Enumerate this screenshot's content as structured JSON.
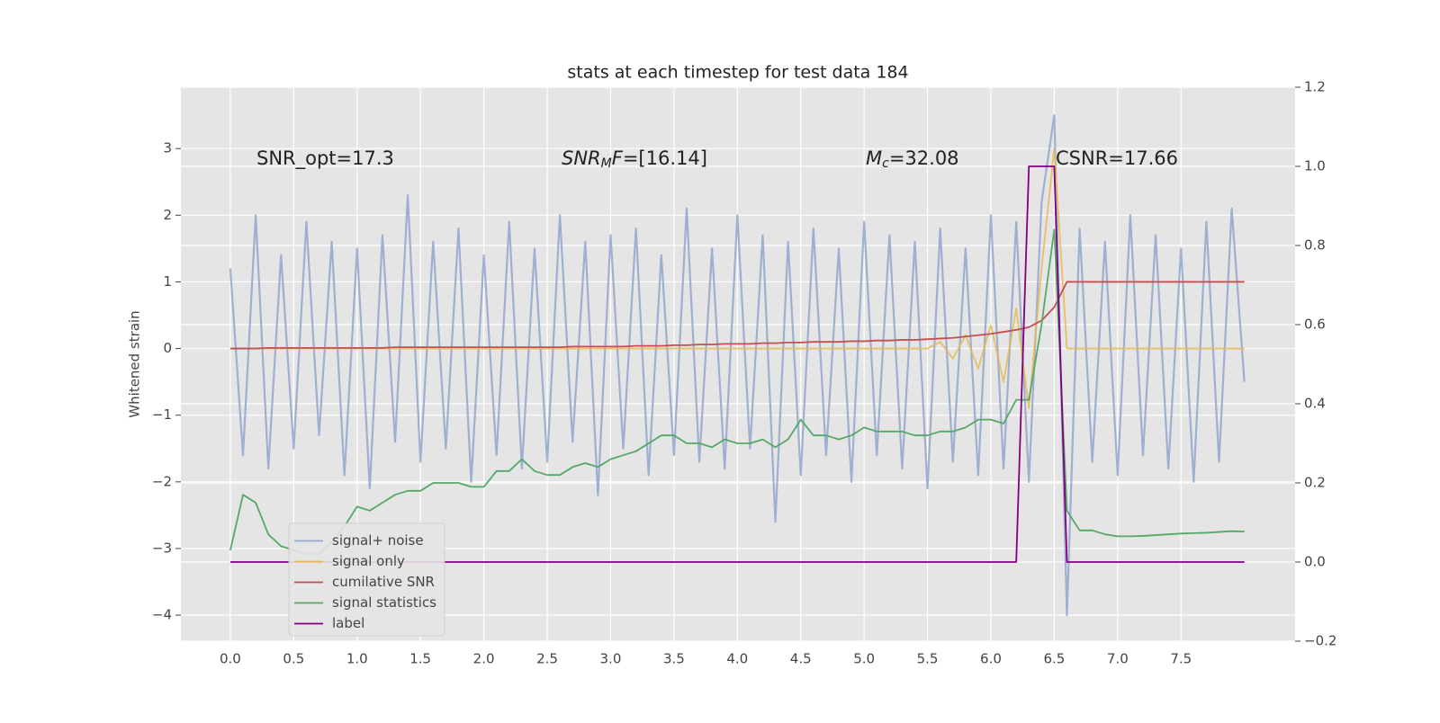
{
  "chart_data": {
    "type": "line",
    "title": "stats at each timestep for test data 184",
    "y_label": "Whitened strain",
    "annotations": [
      [
        "SNR_opt=17.3"
      ],
      [
        "SNR",
        "M",
        "F",
        "=[16.14]"
      ],
      [
        "M",
        "c",
        "=32.08"
      ],
      [
        "CSNR=17.66"
      ]
    ],
    "xlim": [
      -0.39,
      8.4
    ],
    "ylim": [
      -4.39,
      3.92
    ],
    "y2lim": [
      -0.2,
      1.2
    ],
    "xticks": [
      {
        "value": 0,
        "label": "0.0"
      },
      0.5,
      {
        "value": 1,
        "label": "1.0"
      },
      1.5,
      {
        "value": 2,
        "label": "2.0"
      },
      2.5,
      {
        "value": 3,
        "label": "3.0"
      },
      3.5,
      {
        "value": 4,
        "label": "4.0"
      },
      4.5,
      {
        "value": 5,
        "label": "5.0"
      },
      5.5,
      {
        "value": 6,
        "label": "6.0"
      },
      6.5,
      {
        "value": 7,
        "label": "7.0"
      },
      7.5
    ],
    "yticks": [
      {
        "value": -4,
        "label": "−4"
      },
      {
        "value": -3,
        "label": "−3"
      },
      {
        "value": -2,
        "label": "−2"
      },
      {
        "value": -1,
        "label": "−1"
      },
      0,
      1,
      2,
      3
    ],
    "y2ticks": [
      {
        "value": -0.2,
        "label": "−0.2"
      },
      {
        "value": 0,
        "label": "0.0"
      },
      0.2,
      0.4,
      0.6,
      0.8,
      {
        "value": 1,
        "label": "1.0"
      },
      1.2
    ],
    "grid": true,
    "legend": "lower left",
    "x": [
      0.0,
      0.1,
      0.2,
      0.3,
      0.4,
      0.5,
      0.6,
      0.7,
      0.8,
      0.9,
      1.0,
      1.1,
      1.2,
      1.3,
      1.4,
      1.5,
      1.6,
      1.7,
      1.8,
      1.9,
      2.0,
      2.1,
      2.2,
      2.3,
      2.4,
      2.5,
      2.6,
      2.7,
      2.8,
      2.9,
      3.0,
      3.1,
      3.2,
      3.3,
      3.4,
      3.5,
      3.6,
      3.7,
      3.8,
      3.9,
      4.0,
      4.1,
      4.2,
      4.3,
      4.4,
      4.5,
      4.6,
      4.7,
      4.8,
      4.9,
      5.0,
      5.1,
      5.2,
      5.3,
      5.4,
      5.5,
      5.6,
      5.7,
      5.8,
      5.9,
      6.0,
      6.1,
      6.2,
      6.3,
      6.4,
      6.5,
      6.6,
      6.7,
      6.8,
      6.9,
      7.0,
      7.1,
      7.2,
      7.3,
      7.4,
      7.5,
      7.6,
      7.7,
      7.8,
      7.9,
      8.0
    ],
    "series": [
      {
        "name": "signal+ noise",
        "color": "#92a6cf",
        "values": [
          1.2,
          -1.6,
          2.0,
          -1.8,
          1.4,
          -1.5,
          1.9,
          -1.3,
          1.6,
          -1.9,
          1.5,
          -2.1,
          1.7,
          -1.4,
          2.3,
          -1.7,
          1.6,
          -1.5,
          1.8,
          -2.0,
          1.4,
          -1.6,
          1.9,
          -1.8,
          1.5,
          -1.7,
          2.0,
          -1.4,
          1.6,
          -2.2,
          1.7,
          -1.5,
          1.8,
          -1.9,
          1.4,
          -1.6,
          2.1,
          -1.7,
          1.5,
          -1.8,
          2.0,
          -1.5,
          1.7,
          -2.6,
          1.6,
          -1.9,
          1.8,
          -1.6,
          1.5,
          -2.0,
          1.9,
          -1.6,
          1.7,
          -1.8,
          1.6,
          -2.1,
          1.8,
          -1.7,
          1.5,
          -1.9,
          2.0,
          -1.8,
          1.9,
          -2.0,
          2.2,
          3.5,
          -4.0,
          1.8,
          -1.7,
          1.6,
          -1.9,
          2.0,
          -1.6,
          1.7,
          -1.8,
          1.5,
          -2.0,
          1.9,
          -1.7,
          2.1,
          -0.5
        ]
      },
      {
        "name": "signal only",
        "color": "#e8b84f",
        "values": [
          0,
          0,
          0,
          0,
          0,
          0,
          0,
          0,
          0,
          0,
          0,
          0,
          0,
          0,
          0,
          0,
          0,
          0,
          0,
          0,
          0,
          0,
          0,
          0,
          0,
          0,
          0,
          0,
          0,
          0,
          0,
          0,
          0,
          0,
          0,
          0,
          0,
          0,
          0,
          0,
          0,
          0,
          0,
          0,
          0,
          0,
          0,
          0,
          0,
          0,
          0,
          0,
          0,
          0,
          0,
          0,
          0.1,
          -0.15,
          0.2,
          -0.3,
          0.35,
          -0.5,
          0.6,
          -0.9,
          1.2,
          3.0,
          0,
          0,
          0,
          0,
          0,
          0,
          0,
          0,
          0,
          0,
          0,
          0,
          0,
          0,
          0
        ]
      },
      {
        "name": "cumilative SNR",
        "color": "#c44e52",
        "values": [
          0,
          0,
          0,
          0.01,
          0.01,
          0.01,
          0.01,
          0.01,
          0.01,
          0.01,
          0.01,
          0.01,
          0.01,
          0.02,
          0.02,
          0.02,
          0.02,
          0.02,
          0.02,
          0.02,
          0.02,
          0.02,
          0.02,
          0.02,
          0.02,
          0.02,
          0.02,
          0.03,
          0.03,
          0.03,
          0.03,
          0.03,
          0.04,
          0.04,
          0.04,
          0.05,
          0.05,
          0.06,
          0.06,
          0.07,
          0.07,
          0.07,
          0.08,
          0.08,
          0.09,
          0.09,
          0.1,
          0.1,
          0.1,
          0.11,
          0.11,
          0.12,
          0.12,
          0.13,
          0.13,
          0.14,
          0.15,
          0.16,
          0.18,
          0.2,
          0.22,
          0.25,
          0.28,
          0.32,
          0.42,
          0.62,
          1.0,
          1.0,
          1.0,
          1.0,
          1.0,
          1.0,
          1.0,
          1.0,
          1.0,
          1.0,
          1.0,
          1.0,
          1.0,
          1.0,
          1.0
        ]
      },
      {
        "name": "signal statistics",
        "color": "#55a868",
        "axis": "y2",
        "values": [
          0.03,
          0.17,
          0.15,
          0.07,
          0.04,
          0.03,
          0.02,
          0.02,
          0.05,
          0.09,
          0.14,
          0.13,
          0.15,
          0.17,
          0.18,
          0.18,
          0.2,
          0.2,
          0.2,
          0.19,
          0.19,
          0.23,
          0.23,
          0.26,
          0.23,
          0.22,
          0.22,
          0.24,
          0.25,
          0.24,
          0.26,
          0.27,
          0.28,
          0.3,
          0.32,
          0.32,
          0.3,
          0.3,
          0.29,
          0.31,
          0.3,
          0.3,
          0.31,
          0.29,
          0.31,
          0.36,
          0.32,
          0.32,
          0.31,
          0.32,
          0.34,
          0.33,
          0.33,
          0.33,
          0.32,
          0.32,
          0.33,
          0.33,
          0.34,
          0.36,
          0.36,
          0.35,
          0.41,
          0.41,
          0.6,
          0.84,
          0.13,
          0.08,
          0.08,
          0.07,
          0.065,
          0.065,
          0.066,
          0.068,
          0.07,
          0.072,
          0.073,
          0.074,
          0.076,
          0.078,
          0.077
        ]
      },
      {
        "name": "label",
        "color": "#800080",
        "axis": "y2",
        "values": [
          0,
          0,
          0,
          0,
          0,
          0,
          0,
          0,
          0,
          0,
          0,
          0,
          0,
          0,
          0,
          0,
          0,
          0,
          0,
          0,
          0,
          0,
          0,
          0,
          0,
          0,
          0,
          0,
          0,
          0,
          0,
          0,
          0,
          0,
          0,
          0,
          0,
          0,
          0,
          0,
          0,
          0,
          0,
          0,
          0,
          0,
          0,
          0,
          0,
          0,
          0,
          0,
          0,
          0,
          0,
          0,
          0,
          0,
          0,
          0,
          0,
          0,
          0,
          1,
          1,
          1,
          0,
          0,
          0,
          0,
          0,
          0,
          0,
          0,
          0,
          0,
          0,
          0,
          0,
          0,
          0
        ]
      }
    ]
  }
}
